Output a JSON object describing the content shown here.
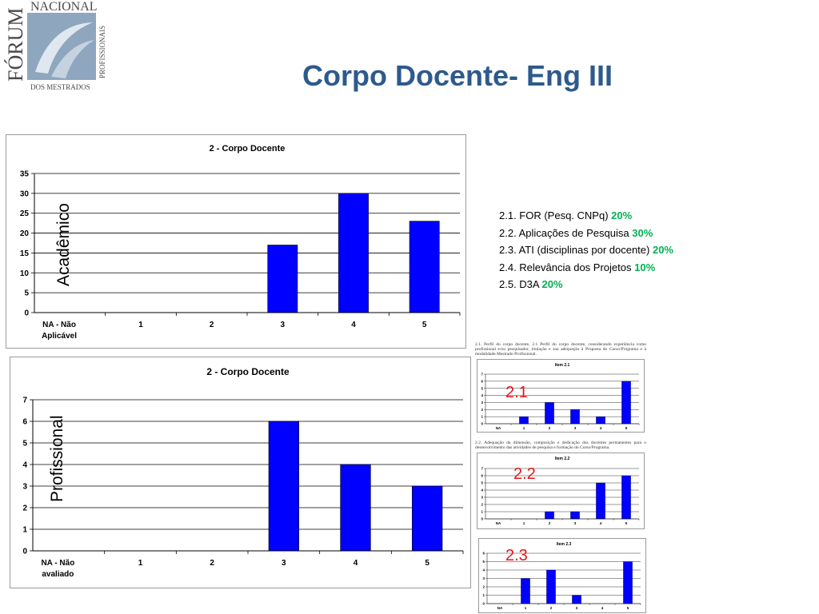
{
  "page": {
    "title": "Corpo Docente- Eng III"
  },
  "logo": {
    "text_top": "NACIONAL",
    "text_side": "FÓRUM",
    "text_right": "PROFISSIONAIS",
    "text_bottom": "DOS MESTRADOS"
  },
  "side_labels": {
    "academic": "Acadêmico",
    "professional": "Profissional"
  },
  "criteria": [
    {
      "text": "2.1. FOR (Pesq. CNPq) ",
      "pct": "20%"
    },
    {
      "text": "2.2. Aplicações de Pesquisa ",
      "pct": "30%"
    },
    {
      "text": "2.3. ATI (disciplinas por docente) ",
      "pct": "20%"
    },
    {
      "text": "2.4. Relevância dos Projetos ",
      "pct": "10%"
    },
    {
      "text": "2.5. D3A ",
      "pct": "20%"
    }
  ],
  "item_labels": {
    "i21": "2.1",
    "i22": "2.2",
    "i23": "2.3"
  },
  "captions": {
    "c21": "2.1. Perfil do corpo docente, 2.1 Perfil do corpo docente, considerando experiência como profissional e/ou pesquisador, titulação e sua adequação à Proposta do Curso/Programa e à modalidade Mestrado Profissional.",
    "c22": "2.2. Adequação da dimensão, composição e dedicação dos docentes permanentes para o desenvolvimento das atividades de pesquisa e formação do Curso/Programa."
  },
  "colors": {
    "bar": "#0000ff",
    "title": "#2d5a8c",
    "pct": "#00b050",
    "item_label": "#e8141b"
  },
  "chart_data": [
    {
      "type": "bar",
      "title": "2 - Corpo Docente",
      "categories": [
        "NA - Não Aplicável",
        "1",
        "2",
        "3",
        "4",
        "5"
      ],
      "values": [
        0,
        0,
        0,
        17,
        30,
        23
      ],
      "ylim": [
        0,
        35
      ],
      "yticks": [
        0,
        5,
        10,
        15,
        20,
        25,
        30,
        35
      ],
      "grid": true
    },
    {
      "type": "bar",
      "title": "2 - Corpo Docente",
      "categories": [
        "NA - Não avaliado",
        "1",
        "2",
        "3",
        "4",
        "5"
      ],
      "values": [
        0,
        0,
        0,
        6,
        4,
        3
      ],
      "ylim": [
        0,
        7
      ],
      "yticks": [
        0,
        1,
        2,
        3,
        4,
        5,
        6,
        7
      ],
      "grid": true
    },
    {
      "type": "bar",
      "title": "Item 2.1",
      "categories": [
        "NA",
        "1",
        "2",
        "3",
        "4",
        "5"
      ],
      "values": [
        0,
        1,
        3,
        2,
        1,
        6
      ],
      "ylim": [
        0,
        7
      ],
      "yticks": [
        0,
        1,
        2,
        3,
        4,
        5,
        6,
        7
      ],
      "grid": true
    },
    {
      "type": "bar",
      "title": "Item 2.2",
      "categories": [
        "NA",
        "1",
        "2",
        "3",
        "4",
        "5"
      ],
      "values": [
        0,
        0,
        1,
        1,
        5,
        6
      ],
      "ylim": [
        0,
        7
      ],
      "yticks": [
        0,
        1,
        2,
        3,
        4,
        5,
        6,
        7
      ],
      "grid": true
    },
    {
      "type": "bar",
      "title": "Item 2.3",
      "categories": [
        "NA",
        "1",
        "2",
        "3",
        "4",
        "5"
      ],
      "values": [
        0,
        3,
        4,
        1,
        0,
        5
      ],
      "ylim": [
        0,
        6
      ],
      "yticks": [
        0,
        1,
        2,
        3,
        4,
        5,
        6
      ],
      "grid": true
    }
  ]
}
